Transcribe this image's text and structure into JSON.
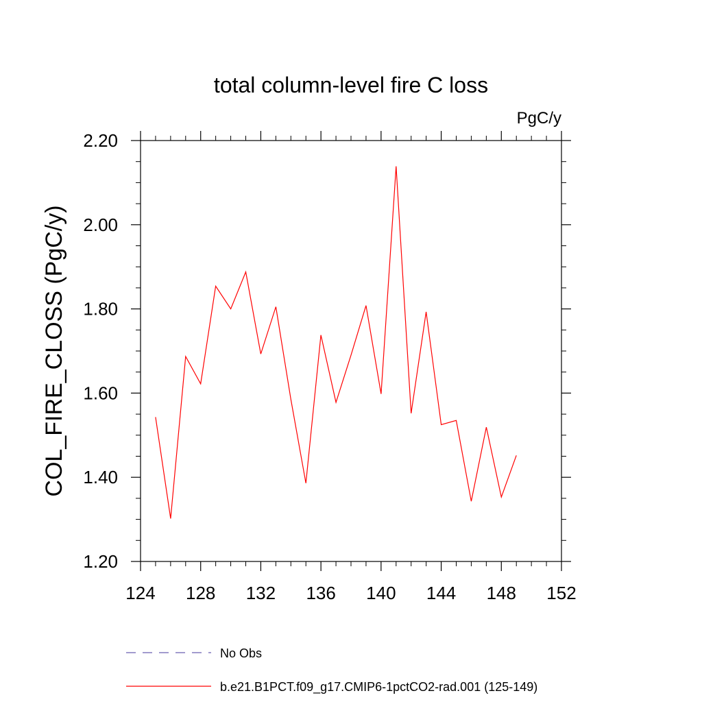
{
  "chart_data": {
    "type": "line",
    "title": "total column-level fire C loss",
    "units_label": "PgC/y",
    "ylabel": "COL_FIRE_CLOSS  (PgC/y)",
    "xlabel": "",
    "xlim": [
      124,
      152
    ],
    "ylim": [
      1.2,
      2.2
    ],
    "x_ticks": [
      "124",
      "128",
      "132",
      "136",
      "140",
      "144",
      "148",
      "152"
    ],
    "y_ticks": [
      "1.20",
      "1.40",
      "1.60",
      "1.80",
      "2.00",
      "2.20"
    ],
    "grid": false,
    "legend_position": "bottom",
    "legend": [
      {
        "name": "No Obs",
        "style": "dashed",
        "color": "#6b5fb0"
      },
      {
        "name": "b.e21.B1PCT.f09_g17.CMIP6-1pctCO2-rad.001 (125-149)",
        "style": "solid",
        "color": "#ff0000"
      }
    ],
    "series": [
      {
        "name": "b.e21.B1PCT.f09_g17.CMIP6-1pctCO2-rad.001 (125-149)",
        "color": "#ff0000",
        "x": [
          125,
          126,
          127,
          128,
          129,
          130,
          131,
          132,
          133,
          134,
          135,
          136,
          137,
          138,
          139,
          140,
          141,
          142,
          143,
          144,
          145,
          146,
          147,
          148,
          149
        ],
        "values": [
          1.543,
          1.302,
          1.687,
          1.622,
          1.854,
          1.8,
          1.888,
          1.693,
          1.805,
          1.585,
          1.386,
          1.738,
          1.578,
          1.69,
          1.808,
          1.598,
          2.139,
          1.552,
          1.793,
          1.525,
          1.535,
          1.343,
          1.519,
          1.353,
          1.452
        ]
      }
    ]
  }
}
